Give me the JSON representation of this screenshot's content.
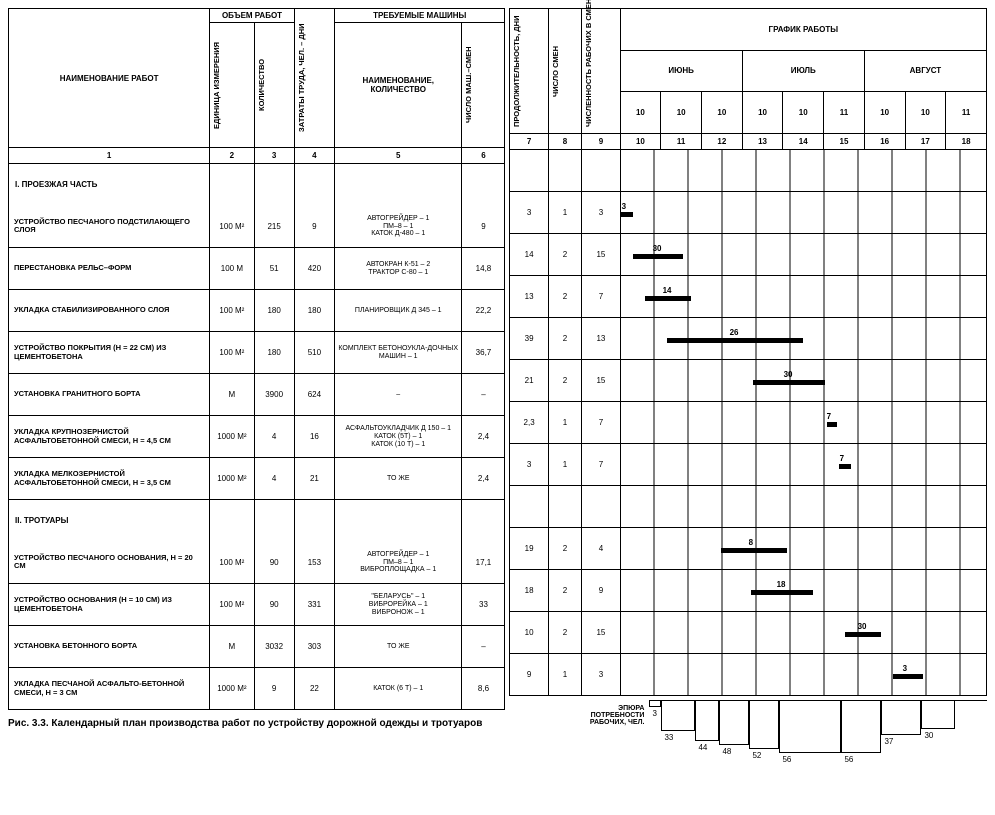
{
  "headers": {
    "name": "НАИМЕНОВАНИЕ РАБОТ",
    "vol": "ОБЪЕМ РАБОТ",
    "unit": "ЕДИНИЦА ИЗМЕРЕНИЯ",
    "qty": "КОЛИЧЕСТВО",
    "labor": "ЗАТРАТЫ ТРУДА, ЧЕЛ. – ДНИ",
    "mach": "ТРЕБУЕМЫЕ МАШИНЫ",
    "machname": "НАИМЕНОВАНИЕ, КОЛИЧЕСТВО",
    "shifts": "ЧИСЛО МАШ.–СМЕН",
    "dur": "ПРОДОЛЖИТЕЛЬНОСТЬ, ДНИ",
    "nshifts": "ЧИСЛО СМЕН",
    "crew": "ЧИСЛЕННОСТЬ РАБОЧИХ В СМЕНУ",
    "sched": "ГРАФИК РАБОТЫ",
    "months": [
      "ИЮНЬ",
      "ИЮЛЬ",
      "АВГУСТ"
    ],
    "decades": [
      "10",
      "10",
      "10",
      "10",
      "10",
      "11",
      "10",
      "10",
      "11"
    ]
  },
  "colnums_left": [
    "1",
    "2",
    "3",
    "4",
    "5",
    "6"
  ],
  "colnums_right": [
    "7",
    "8",
    "9",
    "10",
    "11",
    "12",
    "13",
    "14",
    "15",
    "16",
    "17",
    "18"
  ],
  "sections": {
    "s1": "I.   ПРОЕЗЖАЯ ЧАСТЬ",
    "s2": "II.   ТРОТУАРЫ"
  },
  "rows": [
    {
      "n": "УСТРОЙСТВО ПЕСЧАНОГО ПОДСТИЛАЮЩЕГО СЛОЯ",
      "u": "100 М²",
      "q": "215",
      "l": "9",
      "m": "АВТОГРЕЙДЕР – 1\nПМ–8 – 1\nКАТОК Д-480 – 1",
      "s": "9",
      "d": "3",
      "sh": "1",
      "c": "3",
      "bar": {
        "start": 0,
        "len": 12,
        "lbl": "3"
      }
    },
    {
      "n": "ПЕРЕСТАНОВКА РЕЛЬС–ФОРМ",
      "u": "100 М",
      "q": "51",
      "l": "420",
      "m": "АВТОКРАН К-51 – 2\nТРАКТОР С-80 – 1",
      "s": "14,8",
      "d": "14",
      "sh": "2",
      "c": "15",
      "bar": {
        "start": 12,
        "len": 50,
        "lbl": "30"
      }
    },
    {
      "n": "УКЛАДКА СТАБИЛИЗИРОВАННОГО СЛОЯ",
      "u": "100 М²",
      "q": "180",
      "l": "180",
      "m": "ПЛАНИРОВЩИК Д 345 – 1",
      "s": "22,2",
      "d": "13",
      "sh": "2",
      "c": "7",
      "bar": {
        "start": 24,
        "len": 46,
        "lbl": "14"
      }
    },
    {
      "n": "УСТРОЙСТВО ПОКРЫТИЯ (h = 22 см) ИЗ ЦЕМЕНТОБЕТОНА",
      "u": "100 М²",
      "q": "180",
      "l": "510",
      "m": "КОМПЛЕКТ БЕТОНОУКЛА-ДОЧНЫХ МАШИН – 1",
      "s": "36,7",
      "d": "39",
      "sh": "2",
      "c": "13",
      "bar": {
        "start": 46,
        "len": 136,
        "lbl": "26"
      }
    },
    {
      "n": "УСТАНОВКА ГРАНИТНОГО БОРТА",
      "u": "М",
      "q": "3900",
      "l": "624",
      "m": "–",
      "s": "–",
      "d": "21",
      "sh": "2",
      "c": "15",
      "bar": {
        "start": 132,
        "len": 72,
        "lbl": "30"
      }
    },
    {
      "n": "УКЛАДКА КРУПНОЗЕРНИСТОЙ АСФАЛЬТОБЕТОННОЙ СМЕСИ, h = 4,5 СМ",
      "u": "1000 М²",
      "q": "4",
      "l": "16",
      "m": "АСФАЛЬТОУКЛАДЧИК Д 150 – 1\nКАТОК (5т) – 1\nКАТОК (10 т) – 1",
      "s": "2,4",
      "d": "2,3",
      "sh": "1",
      "c": "7",
      "bar": {
        "start": 206,
        "len": 10,
        "lbl": "7"
      }
    },
    {
      "n": "УКЛАДКА МЕЛКОЗЕРНИСТОЙ АСФАЛЬТОБЕТОННОЙ СМЕСИ, h = 3,5 СМ",
      "u": "1000 М²",
      "q": "4",
      "l": "21",
      "m": "ТО ЖЕ",
      "s": "2,4",
      "d": "3",
      "sh": "1",
      "c": "7",
      "bar": {
        "start": 218,
        "len": 12,
        "lbl": "7"
      }
    },
    {
      "n": "УСТРОЙСТВО ПЕСЧАНОГО ОСНОВАНИЯ, h = 20 СМ",
      "u": "100 М²",
      "q": "90",
      "l": "153",
      "m": "АВТОГРЕЙДЕР – 1\nПМ–8 – 1\nВИБРОПЛОЩАДКА – 1",
      "s": "17,1",
      "d": "19",
      "sh": "2",
      "c": "4",
      "bar": {
        "start": 100,
        "len": 66,
        "lbl": "8"
      }
    },
    {
      "n": "УСТРОЙСТВО ОСНОВАНИЯ (h = 10 СМ) ИЗ ЦЕМЕНТОБЕТОНА",
      "u": "100 М²",
      "q": "90",
      "l": "331",
      "m": "\"БЕЛАРУСЬ\" – 1\nВИБРОРЕЙКА – 1\nВИБРОНОЖ – 1",
      "s": "33",
      "d": "18",
      "sh": "2",
      "c": "9",
      "bar": {
        "start": 130,
        "len": 62,
        "lbl": "18"
      }
    },
    {
      "n": "УСТАНОВКА БЕТОННОГО БОРТА",
      "u": "М",
      "q": "3032",
      "l": "303",
      "m": "ТО ЖЕ",
      "s": "–",
      "d": "10",
      "sh": "2",
      "c": "15",
      "bar": {
        "start": 224,
        "len": 36,
        "lbl": "30"
      }
    },
    {
      "n": "УКЛАДКА ПЕСЧАНОЙ АСФАЛЬТО-БЕТОННОЙ СМЕСИ, h = 3 СМ",
      "u": "1000 М²",
      "q": "9",
      "l": "22",
      "m": "КАТОК (6 т) – 1",
      "s": "8,6",
      "d": "9",
      "sh": "1",
      "c": "3",
      "bar": {
        "start": 272,
        "len": 30,
        "lbl": "3"
      }
    }
  ],
  "caption": "Рис. 3.3. Календарный план производства работ по устройству дорожной одежды и тротуаров",
  "step": {
    "label": "ЭПЮРА ПОТРЕБНОСТИ РАБОЧИХ, ЧЕЛ.",
    "values": [
      "3",
      "33",
      "44",
      "48",
      "52",
      "56",
      "56",
      "37",
      "30"
    ],
    "lefts": [
      0,
      12,
      46,
      70,
      100,
      130,
      192,
      232,
      272
    ],
    "widths": [
      12,
      34,
      24,
      30,
      30,
      62,
      40,
      40,
      34
    ],
    "heights": [
      6,
      30,
      40,
      44,
      48,
      52,
      52,
      34,
      28
    ]
  }
}
